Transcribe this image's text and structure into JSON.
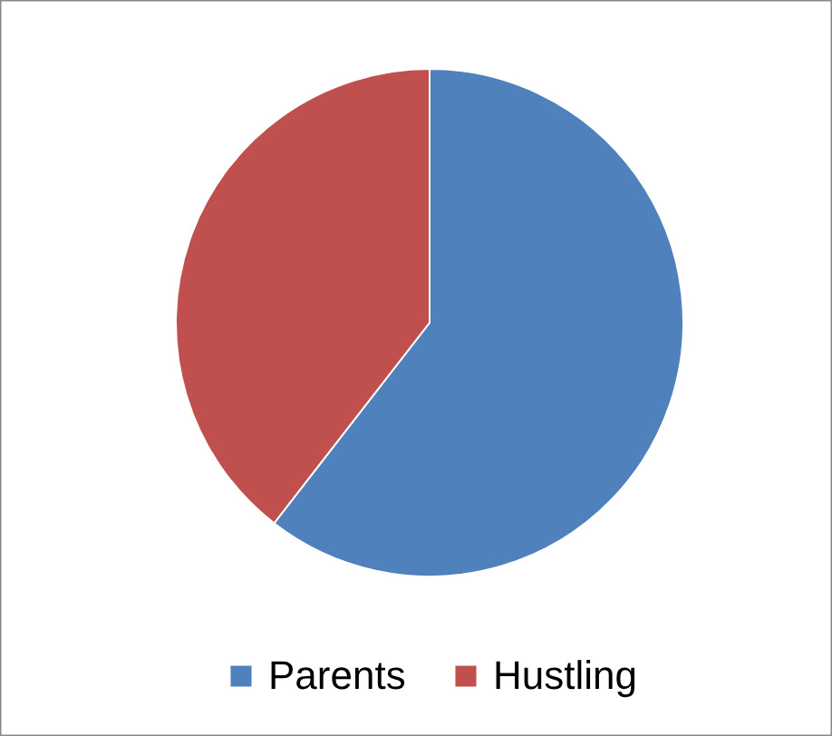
{
  "chart_data": {
    "type": "pie",
    "categories": [
      "Parents",
      "Hustling"
    ],
    "values": [
      60.5,
      39.5
    ],
    "colors": [
      "#4f81bd",
      "#c0504d"
    ],
    "legend": "bottom"
  }
}
